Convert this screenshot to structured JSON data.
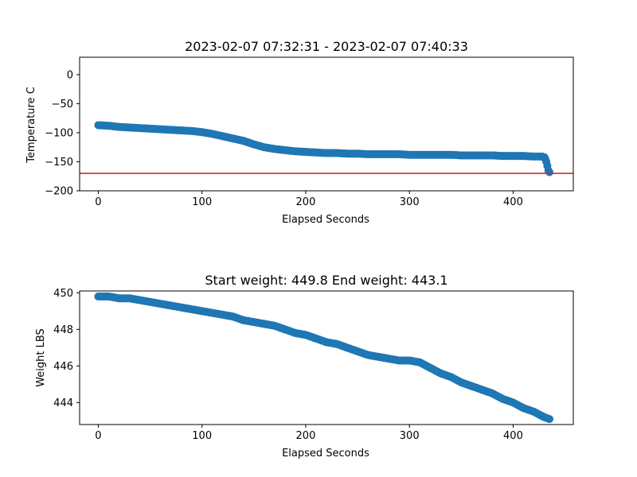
{
  "colors": {
    "series": "#1f77b4",
    "threshold": "#d62728",
    "axis": "#000000",
    "background": "#ffffff"
  },
  "chart_data": [
    {
      "type": "scatter",
      "title": "2023-02-07 07:32:31 - 2023-02-07 07:40:33",
      "xlabel": "Elapsed Seconds",
      "ylabel": "Temperature C",
      "xlim": [
        -18,
        458
      ],
      "ylim": [
        -200,
        30
      ],
      "xticks": [
        0,
        100,
        200,
        300,
        400
      ],
      "xtick_labels": [
        "0",
        "100",
        "200",
        "300",
        "400"
      ],
      "yticks": [
        0,
        -50,
        -100,
        -150,
        -200
      ],
      "ytick_labels": [
        "0",
        "−50",
        "−100",
        "−150",
        "−200"
      ],
      "grid": false,
      "threshold_line": -170,
      "series": [
        {
          "x": [
            0,
            10,
            20,
            30,
            40,
            50,
            60,
            70,
            80,
            90,
            100,
            110,
            120,
            130,
            140,
            150,
            160,
            170,
            180,
            190,
            200,
            210,
            220,
            230,
            240,
            250,
            260,
            270,
            280,
            290,
            300,
            310,
            320,
            330,
            340,
            350,
            360,
            370,
            380,
            390,
            400,
            410,
            420,
            425,
            428,
            430,
            431,
            432,
            433,
            434,
            435
          ],
          "y": [
            -87,
            -88,
            -90,
            -91,
            -92,
            -93,
            -94,
            -95,
            -96,
            -97,
            -99,
            -102,
            -106,
            -110,
            -114,
            -120,
            -125,
            -128,
            -130,
            -132,
            -133,
            -134,
            -135,
            -135,
            -136,
            -136,
            -137,
            -137,
            -137,
            -137,
            -138,
            -138,
            -138,
            -138,
            -138,
            -139,
            -139,
            -139,
            -139,
            -140,
            -140,
            -140,
            -141,
            -141,
            -141,
            -142,
            -145,
            -150,
            -157,
            -165,
            -168
          ]
        }
      ]
    },
    {
      "type": "scatter",
      "title": "Start weight: 449.8 End weight: 443.1",
      "xlabel": "Elapsed Seconds",
      "ylabel": "Weight LBS",
      "xlim": [
        -18,
        458
      ],
      "ylim": [
        442.8,
        450.1
      ],
      "xticks": [
        0,
        100,
        200,
        300,
        400
      ],
      "xtick_labels": [
        "0",
        "100",
        "200",
        "300",
        "400"
      ],
      "yticks": [
        444,
        446,
        448,
        450
      ],
      "ytick_labels": [
        "444",
        "446",
        "448",
        "450"
      ],
      "grid": false,
      "series": [
        {
          "x": [
            0,
            10,
            20,
            30,
            40,
            50,
            60,
            70,
            80,
            90,
            100,
            110,
            120,
            130,
            140,
            150,
            160,
            170,
            180,
            190,
            200,
            210,
            220,
            230,
            240,
            250,
            260,
            270,
            280,
            290,
            300,
            310,
            320,
            330,
            340,
            350,
            360,
            370,
            380,
            390,
            400,
            410,
            420,
            430,
            435
          ],
          "y": [
            449.8,
            449.8,
            449.7,
            449.7,
            449.6,
            449.5,
            449.4,
            449.3,
            449.2,
            449.1,
            449.0,
            448.9,
            448.8,
            448.7,
            448.5,
            448.4,
            448.3,
            448.2,
            448.0,
            447.8,
            447.7,
            447.5,
            447.3,
            447.2,
            447.0,
            446.8,
            446.6,
            446.5,
            446.4,
            446.3,
            446.3,
            446.2,
            445.9,
            445.6,
            445.4,
            445.1,
            444.9,
            444.7,
            444.5,
            444.2,
            444.0,
            443.7,
            443.5,
            443.2,
            443.1
          ]
        }
      ]
    }
  ]
}
